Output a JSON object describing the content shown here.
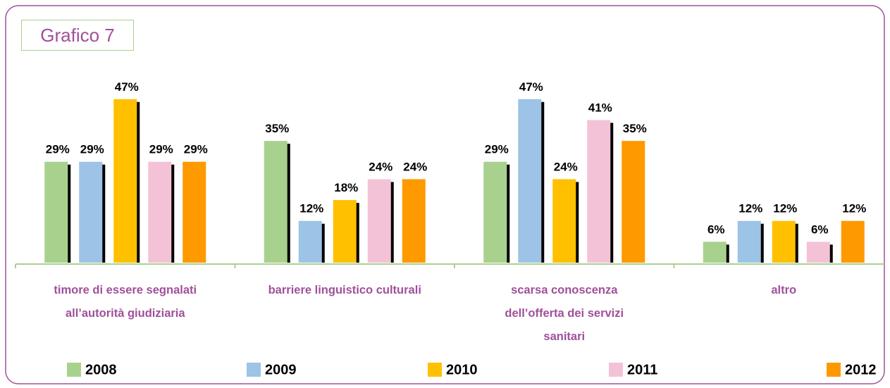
{
  "chart_data": {
    "type": "bar",
    "title": "Grafico 7",
    "categories": [
      "timore di essere segnalati all’autorità giudiziaria",
      "barriere linguistico culturali",
      "scarsa conoscenza dell’offerta dei servizi sanitari",
      "altro"
    ],
    "series": [
      {
        "name": "2008",
        "color": "#a9d18e",
        "values": [
          29,
          35,
          29,
          6
        ],
        "value_labels": [
          "29%",
          "35%",
          "29%",
          "6%"
        ]
      },
      {
        "name": "2009",
        "color": "#9dc3e6",
        "values": [
          29,
          12,
          47,
          12
        ],
        "value_labels": [
          "29%",
          "12%",
          "47%",
          "12%"
        ]
      },
      {
        "name": "2010",
        "color": "#ffc000",
        "values": [
          47,
          18,
          24,
          12
        ],
        "value_labels": [
          "47%",
          "18%",
          "24%",
          "12%"
        ]
      },
      {
        "name": "2011",
        "color": "#f4c2d7",
        "values": [
          29,
          24,
          41,
          6
        ],
        "value_labels": [
          "29%",
          "24%",
          "41%",
          "6%"
        ]
      },
      {
        "name": "2012",
        "color": "#ff9900",
        "values": [
          29,
          24,
          35,
          12
        ],
        "value_labels": [
          "29%",
          "24%",
          "35%",
          "12%"
        ]
      }
    ],
    "ylim": [
      0,
      50
    ]
  }
}
